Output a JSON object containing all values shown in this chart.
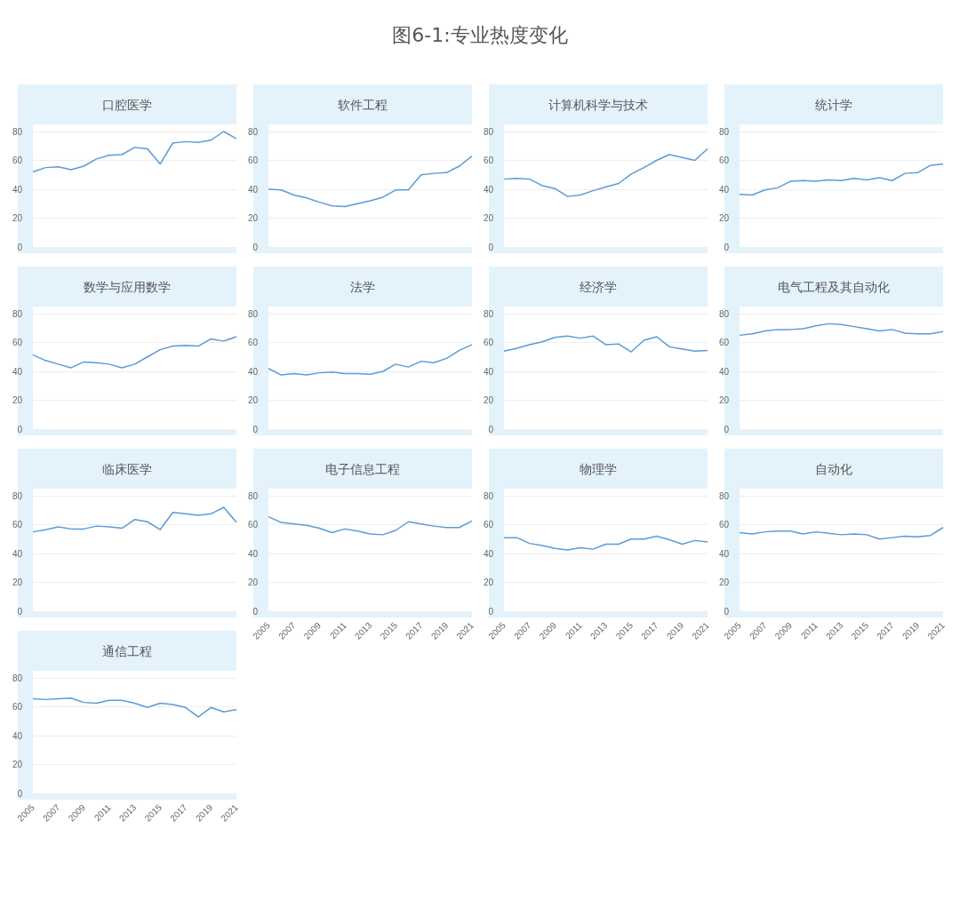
{
  "chart_data": [
    {
      "type": "other",
      "title": "图6-1:专业热度变化"
    },
    {
      "type": "line",
      "title": "口腔医学",
      "categories": [
        "2005",
        null,
        "2007",
        null,
        "2009",
        null,
        "2011",
        null,
        "2013",
        null,
        "2015",
        null,
        "2017",
        null,
        "2019",
        null,
        "2021"
      ],
      "color": "#5b9bd5",
      "values": [
        52,
        55,
        55.5,
        53.5,
        56,
        61,
        63.5,
        64,
        69,
        68,
        57.5,
        72,
        73,
        72.5,
        74,
        80,
        75
      ],
      "ylim": [
        0,
        80
      ],
      "yticks": [
        0,
        20,
        40,
        60,
        80
      ],
      "grid": "y",
      "marker": "none",
      "tick_labels": "y"
    },
    {
      "type": "line",
      "title": "软件工程",
      "categories": [
        "2005",
        null,
        "2007",
        null,
        "2009",
        null,
        "2011",
        null,
        "2013",
        null,
        "2015",
        null,
        "2017",
        null,
        "2019",
        null,
        "2021"
      ],
      "color": "#5b9bd5",
      "values": [
        40,
        39.5,
        36,
        34,
        31,
        28.5,
        28,
        30,
        32,
        34.5,
        39.5,
        39.5,
        50,
        51,
        51.5,
        56,
        63
      ],
      "ylim": [
        0,
        80
      ],
      "yticks": [
        0,
        20,
        40,
        60,
        80
      ],
      "grid": "y",
      "marker": "none",
      "tick_labels": "y"
    },
    {
      "type": "line",
      "title": "计算机科学与技术",
      "categories": [
        "2005",
        null,
        "2007",
        null,
        "2009",
        null,
        "2011",
        null,
        "2013",
        null,
        "2015",
        null,
        "2017",
        null,
        "2019",
        null,
        "2021"
      ],
      "color": "#5b9bd5",
      "values": [
        47,
        47.5,
        47,
        42.5,
        40.5,
        35,
        36,
        39,
        41.5,
        44,
        50.5,
        55,
        60,
        64,
        62,
        60,
        68
      ],
      "ylim": [
        0,
        80
      ],
      "yticks": [
        0,
        20,
        40,
        60,
        80
      ],
      "grid": "y",
      "marker": "none",
      "tick_labels": "y"
    },
    {
      "type": "line",
      "title": "统计学",
      "categories": [
        "2005",
        null,
        "2007",
        null,
        "2009",
        null,
        "2011",
        null,
        "2013",
        null,
        "2015",
        null,
        "2017",
        null,
        "2019",
        null,
        "2021"
      ],
      "color": "#5b9bd5",
      "values": [
        36.5,
        36,
        39.5,
        41,
        45.5,
        46,
        45.5,
        46.5,
        46,
        47.5,
        46.5,
        48,
        46,
        51,
        51.5,
        56.5,
        57.5
      ],
      "ylim": [
        0,
        80
      ],
      "yticks": [
        0,
        20,
        40,
        60,
        80
      ],
      "grid": "y",
      "marker": "none",
      "tick_labels": "y"
    },
    {
      "type": "line",
      "title": "数学与应用数学",
      "categories": [
        "2005",
        null,
        "2007",
        null,
        "2009",
        null,
        "2011",
        null,
        "2013",
        null,
        "2015",
        null,
        "2017",
        null,
        "2019",
        null,
        "2021"
      ],
      "color": "#5b9bd5",
      "values": [
        51.5,
        47.5,
        45,
        42.5,
        46.5,
        46,
        45,
        42.5,
        45,
        50,
        55,
        57.5,
        58,
        57.5,
        62.5,
        61,
        64
      ],
      "ylim": [
        0,
        80
      ],
      "yticks": [
        0,
        20,
        40,
        60,
        80
      ],
      "grid": "y",
      "marker": "none",
      "tick_labels": "y"
    },
    {
      "type": "line",
      "title": "法学",
      "categories": [
        "2005",
        null,
        "2007",
        null,
        "2009",
        null,
        "2011",
        null,
        "2013",
        null,
        "2015",
        null,
        "2017",
        null,
        "2019",
        null,
        "2021"
      ],
      "color": "#5b9bd5",
      "values": [
        42,
        37.5,
        38.5,
        37.5,
        39,
        39.5,
        38.5,
        38.5,
        38,
        40,
        45,
        43,
        47,
        46,
        49,
        54.5,
        58.5
      ],
      "ylim": [
        0,
        80
      ],
      "yticks": [
        0,
        20,
        40,
        60,
        80
      ],
      "grid": "y",
      "marker": "none",
      "tick_labels": "y"
    },
    {
      "type": "line",
      "title": "经济学",
      "categories": [
        "2005",
        null,
        "2007",
        null,
        "2009",
        null,
        "2011",
        null,
        "2013",
        null,
        "2015",
        null,
        "2017",
        null,
        "2019",
        null,
        "2021"
      ],
      "color": "#5b9bd5",
      "values": [
        54,
        56,
        58.5,
        60.5,
        63.5,
        64.5,
        63,
        64.5,
        58.5,
        59,
        53.5,
        61.5,
        64,
        57,
        55.5,
        54,
        54.5
      ],
      "ylim": [
        0,
        80
      ],
      "yticks": [
        0,
        20,
        40,
        60,
        80
      ],
      "grid": "y",
      "marker": "none",
      "tick_labels": "y"
    },
    {
      "type": "line",
      "title": "电气工程及其自动化",
      "categories": [
        "2005",
        null,
        "2007",
        null,
        "2009",
        null,
        "2011",
        null,
        "2013",
        null,
        "2015",
        null,
        "2017",
        null,
        "2019",
        null,
        "2021"
      ],
      "color": "#5b9bd5",
      "values": [
        65,
        66,
        68,
        69,
        69,
        69.5,
        71.5,
        73,
        72.5,
        71,
        69.5,
        68,
        69,
        66.5,
        66,
        66,
        67.5
      ],
      "ylim": [
        0,
        80
      ],
      "yticks": [
        0,
        20,
        40,
        60,
        80
      ],
      "grid": "y",
      "marker": "none",
      "tick_labels": "y"
    },
    {
      "type": "line",
      "title": "临床医学",
      "categories": [
        "2005",
        null,
        "2007",
        null,
        "2009",
        null,
        "2011",
        null,
        "2013",
        null,
        "2015",
        null,
        "2017",
        null,
        "2019",
        null,
        "2021"
      ],
      "color": "#5b9bd5",
      "values": [
        55,
        56.5,
        58.5,
        57,
        57,
        59,
        58.5,
        57.5,
        63.5,
        62,
        56.5,
        68.5,
        67.5,
        66.5,
        67.5,
        72,
        61.5
      ],
      "ylim": [
        0,
        80
      ],
      "yticks": [
        0,
        20,
        40,
        60,
        80
      ],
      "grid": "y",
      "marker": "none",
      "tick_labels": "y"
    },
    {
      "type": "line",
      "title": "电子信息工程",
      "categories": [
        "2005",
        null,
        "2007",
        null,
        "2009",
        null,
        "2011",
        null,
        "2013",
        null,
        "2015",
        null,
        "2017",
        null,
        "2019",
        null,
        "2021"
      ],
      "color": "#5b9bd5",
      "values": [
        65.5,
        61.5,
        60.5,
        59.5,
        57.5,
        54.5,
        57,
        55.5,
        53.5,
        53,
        56,
        62,
        60.5,
        59,
        58,
        58,
        62.5
      ],
      "ylim": [
        0,
        80
      ],
      "yticks": [
        0,
        20,
        40,
        60,
        80
      ],
      "grid": "y",
      "marker": "none"
    },
    {
      "type": "line",
      "title": "物理学",
      "categories": [
        "2005",
        null,
        "2007",
        null,
        "2009",
        null,
        "2011",
        null,
        "2013",
        null,
        "2015",
        null,
        "2017",
        null,
        "2019",
        null,
        "2021"
      ],
      "color": "#5b9bd5",
      "values": [
        51,
        51,
        47,
        45.5,
        43.5,
        42.5,
        44,
        43,
        46.5,
        46.5,
        50,
        50,
        52,
        49.5,
        46.5,
        49,
        48
      ],
      "ylim": [
        0,
        80
      ],
      "yticks": [
        0,
        20,
        40,
        60,
        80
      ],
      "grid": "y",
      "marker": "none"
    },
    {
      "type": "line",
      "title": "自动化",
      "categories": [
        "2005",
        null,
        "2007",
        null,
        "2009",
        null,
        "2011",
        null,
        "2013",
        null,
        "2015",
        null,
        "2017",
        null,
        "2019",
        null,
        "2021"
      ],
      "color": "#5b9bd5",
      "values": [
        54.5,
        53.5,
        55,
        55.5,
        55.5,
        53.5,
        55,
        54,
        53,
        53.5,
        53,
        50,
        51,
        52,
        51.5,
        52.5,
        58
      ],
      "ylim": [
        0,
        80
      ],
      "yticks": [
        0,
        20,
        40,
        60,
        80
      ],
      "grid": "y",
      "marker": "none"
    },
    {
      "type": "line",
      "title": "通信工程",
      "categories": [
        "2005",
        null,
        "2007",
        null,
        "2009",
        null,
        "2011",
        null,
        "2013",
        null,
        "2015",
        null,
        "2017",
        null,
        "2019",
        null,
        "2021"
      ],
      "color": "#5b9bd5",
      "values": [
        65.5,
        65,
        65.5,
        66,
        63,
        62.5,
        64.5,
        64.5,
        62.5,
        59.5,
        62.5,
        61.5,
        59.5,
        53,
        59.5,
        56.5,
        58
      ],
      "ylim": [
        0,
        80
      ],
      "yticks": [
        0,
        20,
        40,
        60,
        80
      ],
      "grid": "y",
      "marker": "none"
    }
  ]
}
